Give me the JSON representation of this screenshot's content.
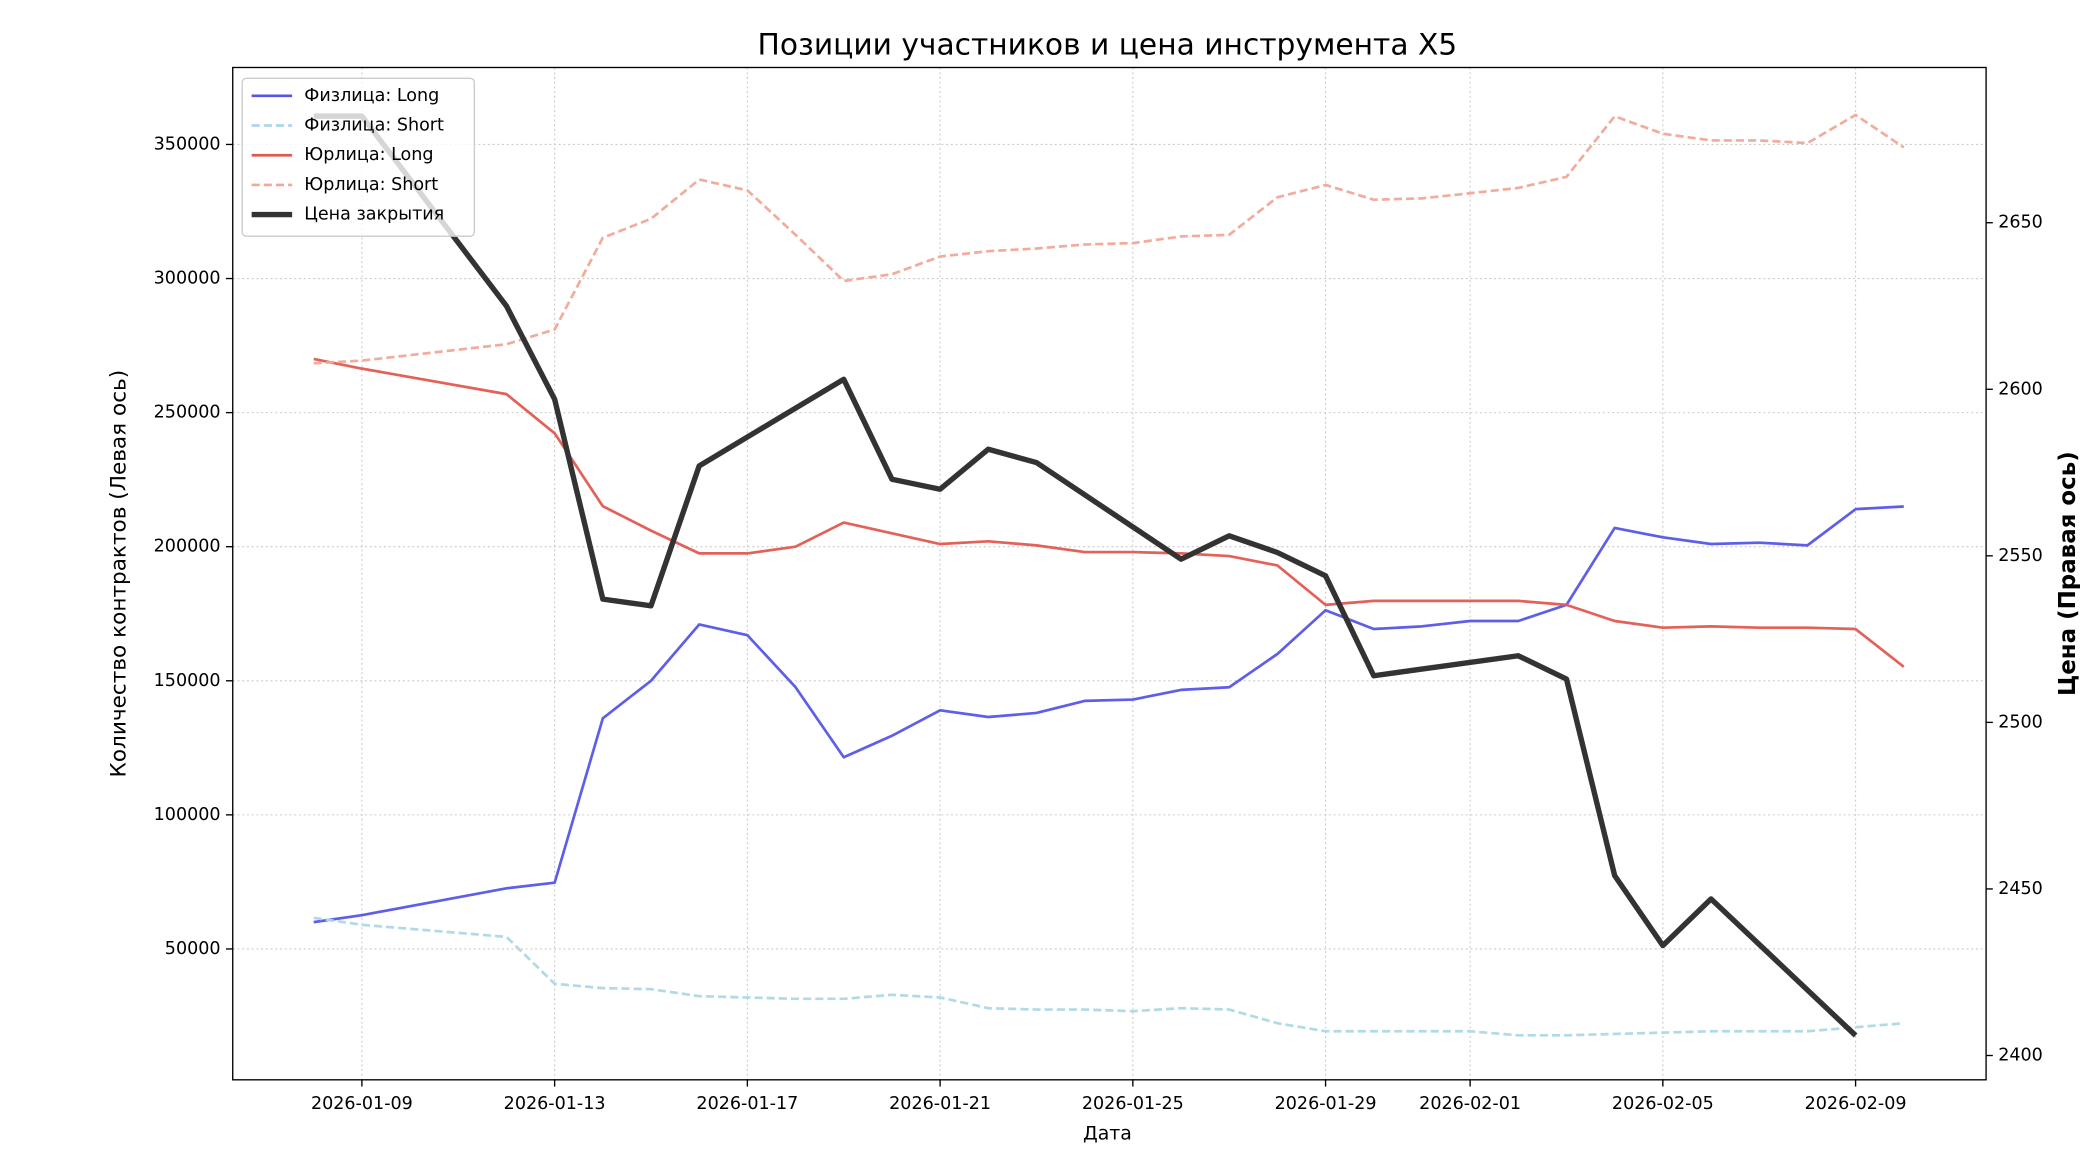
{
  "chart_data": {
    "type": "line",
    "title": "Позиции участников и цена инструмента X5",
    "x_label": "Дата",
    "y_label": "Количество контрактов (Левая ось)",
    "y2_label": "Цена (Правая ось)",
    "x": [
      "2026-01-08",
      "2026-01-09",
      "2026-01-12",
      "2026-01-13",
      "2026-01-14",
      "2026-01-15",
      "2026-01-16",
      "2026-01-17",
      "2026-01-18",
      "2026-01-19",
      "2026-01-20",
      "2026-01-21",
      "2026-01-22",
      "2026-01-23",
      "2026-01-24",
      "2026-01-25",
      "2026-01-26",
      "2026-01-27",
      "2026-01-28",
      "2026-01-29",
      "2026-01-30",
      "2026-01-31",
      "2026-02-01",
      "2026-02-02",
      "2026-02-03",
      "2026-02-04",
      "2026-02-05",
      "2026-02-06",
      "2026-02-07",
      "2026-02-08",
      "2026-02-09",
      "2026-02-10"
    ],
    "series": [
      {
        "name": "Физлица: Long",
        "color": "#5555e8",
        "dashed": false,
        "width": 2,
        "values": [
          60000,
          62600,
          72600,
          74700,
          136000,
          150000,
          171000,
          167000,
          147600,
          121500,
          129500,
          139000,
          136500,
          138000,
          142500,
          143000,
          146600,
          147600,
          160000,
          176300,
          169300,
          170300,
          172300,
          172300,
          178300,
          207000,
          203500,
          201000,
          201500,
          200500,
          214000,
          215000
        ]
      },
      {
        "name": "Физлица: Short",
        "color": "#add8e6",
        "dashed": true,
        "width": 2,
        "values": [
          61600,
          59000,
          54500,
          37000,
          35400,
          35000,
          32400,
          31900,
          31400,
          31400,
          32900,
          31900,
          27900,
          27400,
          27400,
          26800,
          27900,
          27400,
          22300,
          19300,
          19300,
          19300,
          19300,
          17800,
          17800,
          18300,
          18800,
          19300,
          19300,
          19300,
          20800,
          22300
        ]
      },
      {
        "name": "Юрлица: Long",
        "color": "#e05a50",
        "dashed": false,
        "width": 2,
        "values": [
          270000,
          266400,
          256900,
          242300,
          215100,
          206000,
          197500,
          197500,
          200000,
          209000,
          205000,
          201000,
          202000,
          200500,
          198000,
          198000,
          197500,
          196500,
          193000,
          178300,
          179800,
          179800,
          179800,
          179800,
          178300,
          172300,
          169800,
          170300,
          169800,
          169800,
          169300,
          155200
        ]
      },
      {
        "name": "Юрлица: Short",
        "color": "#f0a898",
        "dashed": true,
        "width": 2,
        "values": [
          268400,
          269400,
          275500,
          281000,
          315200,
          322300,
          336900,
          332900,
          316300,
          299100,
          301600,
          308200,
          310200,
          311200,
          312700,
          313200,
          315700,
          316300,
          330300,
          334900,
          329400,
          329900,
          331800,
          333800,
          337900,
          360500,
          354000,
          351500,
          351500,
          350500,
          361000,
          348900
        ]
      },
      {
        "name": "Цена закрытия",
        "color": "#333333",
        "dashed": false,
        "width": 4,
        "axis": "y2",
        "x": [
          "2026-01-08",
          "2026-01-09",
          "2026-01-12",
          "2026-01-13",
          "2026-01-14",
          "2026-01-15",
          "2026-01-16",
          "2026-01-19",
          "2026-01-20",
          "2026-01-21",
          "2026-01-22",
          "2026-01-23",
          "2026-01-26",
          "2026-01-27",
          "2026-01-28",
          "2026-01-29",
          "2026-01-30",
          "2026-02-02",
          "2026-02-03",
          "2026-02-04",
          "2026-02-05",
          "2026-02-06",
          "2026-02-09"
        ],
        "values": [
          2682,
          2682,
          2625,
          2597,
          2537,
          2535,
          2577,
          2603,
          2573,
          2570,
          2582,
          2578,
          2549,
          2556,
          2551,
          2544,
          2514,
          2520,
          2513,
          2454,
          2433,
          2447,
          2406
        ]
      }
    ],
    "xlim": [
      "2026-01-06T07:40",
      "2026-02-11T17:00"
    ],
    "xticks": [
      "2026-01-09",
      "2026-01-13",
      "2026-01-17",
      "2026-01-21",
      "2026-01-25",
      "2026-01-29",
      "2026-02-01",
      "2026-02-05",
      "2026-02-09"
    ],
    "ylim": [
      1200,
      378700
    ],
    "yticks": [
      50000,
      100000,
      150000,
      200000,
      250000,
      300000,
      350000
    ],
    "y2lim": [
      2392.7,
      2696.6
    ],
    "y2ticks": [
      2400,
      2450,
      2500,
      2550,
      2600,
      2650
    ],
    "grid": true,
    "legend": "upper left"
  }
}
